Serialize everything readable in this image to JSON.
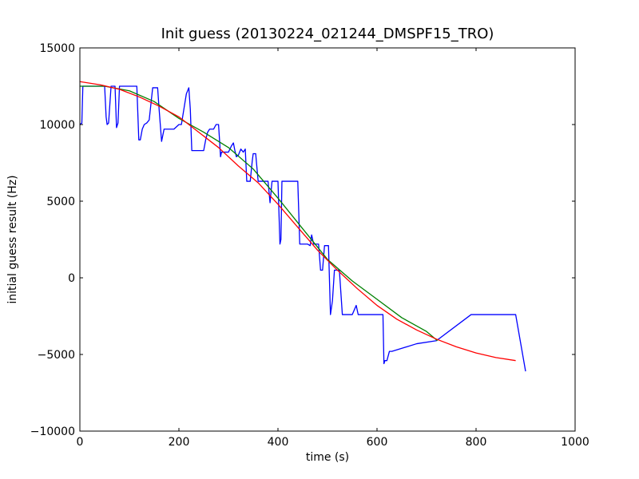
{
  "chart_data": {
    "type": "line",
    "title": "Init guess (20130224_021244_DMSPF15_TRO)",
    "xlabel": "time (s)",
    "ylabel": "initial guess result (Hz)",
    "xlim": [
      0,
      1000
    ],
    "ylim": [
      -10000,
      15000
    ],
    "xticks": [
      0,
      200,
      400,
      600,
      800,
      1000
    ],
    "yticks": [
      -10000,
      -5000,
      0,
      5000,
      10000,
      15000
    ],
    "grid": false,
    "legend": "none",
    "series": [
      {
        "color": "#0000ff",
        "x": [
          0,
          4,
          6,
          10,
          20,
          30,
          40,
          50,
          53,
          55,
          58,
          63,
          68,
          71,
          74,
          77,
          80,
          90,
          100,
          110,
          115,
          119,
          122,
          126,
          130,
          135,
          140,
          147,
          153,
          157,
          160,
          165,
          170,
          180,
          190,
          200,
          205,
          210,
          215,
          220,
          223,
          226,
          230,
          240,
          250,
          254,
          258,
          262,
          270,
          275,
          280,
          282,
          284,
          286,
          290,
          295,
          300,
          306,
          310,
          313,
          316,
          320,
          325,
          330,
          334,
          337,
          340,
          344,
          348,
          350,
          355,
          360,
          366,
          370,
          380,
          384,
          388,
          392,
          396,
          400,
          404,
          406,
          408,
          412,
          416,
          420,
          430,
          440,
          444,
          448,
          452,
          456,
          460,
          465,
          468,
          470,
          472,
          474,
          478,
          482,
          486,
          490,
          494,
          498,
          502,
          506,
          510,
          514,
          518,
          520,
          522,
          524,
          530,
          540,
          550,
          558,
          562,
          570,
          580,
          590,
          600,
          604,
          608,
          610,
          612,
          614,
          616,
          620,
          625,
          630,
          680,
          720,
          790,
          880,
          900
        ],
        "y": [
          10000,
          10100,
          12500,
          12500,
          12500,
          12500,
          12500,
          12500,
          10500,
          10000,
          10100,
          12500,
          12500,
          12500,
          9800,
          10100,
          12500,
          12500,
          12500,
          12500,
          12500,
          9000,
          9000,
          9700,
          10000,
          10100,
          10300,
          12400,
          12400,
          12400,
          11000,
          8900,
          9700,
          9700,
          9700,
          10000,
          10000,
          11000,
          12000,
          12400,
          11000,
          8300,
          8300,
          8300,
          8300,
          9000,
          9500,
          9700,
          9700,
          10000,
          10000,
          9000,
          7900,
          8200,
          8200,
          8200,
          8200,
          8600,
          8800,
          8300,
          7900,
          8000,
          8400,
          8200,
          8400,
          6300,
          6300,
          6300,
          7600,
          8100,
          8100,
          6300,
          6300,
          6300,
          6300,
          4900,
          6300,
          6300,
          6300,
          6300,
          2200,
          2500,
          6300,
          6300,
          6300,
          6300,
          6300,
          6300,
          2200,
          2200,
          2200,
          2200,
          2200,
          2100,
          2800,
          2500,
          2200,
          2200,
          2200,
          2200,
          500,
          500,
          2100,
          2100,
          2100,
          -2400,
          -1500,
          500,
          500,
          500,
          500,
          500,
          -2400,
          -2400,
          -2400,
          -1800,
          -2400,
          -2400,
          -2400,
          -2400,
          -2400,
          -2400,
          -2400,
          -2400,
          -2400,
          -5600,
          -5400,
          -5400,
          -4800,
          -4800,
          -4300,
          -4100,
          -2400,
          -2400,
          -6100
        ]
      },
      {
        "color": "#008000",
        "x": [
          0,
          50,
          100,
          150,
          200,
          250,
          300,
          350,
          400,
          450,
          500,
          550,
          600,
          650,
          700,
          722
        ],
        "y": [
          12500,
          12500,
          12200,
          11500,
          10400,
          9500,
          8500,
          7100,
          5200,
          3200,
          1200,
          -200,
          -1400,
          -2600,
          -3500,
          -4100
        ]
      },
      {
        "color": "#ff0000",
        "x": [
          0,
          40,
          80,
          120,
          160,
          200,
          240,
          280,
          320,
          360,
          400,
          440,
          480,
          520,
          560,
          600,
          640,
          680,
          720,
          760,
          800,
          840,
          880
        ],
        "y": [
          12800,
          12600,
          12300,
          11800,
          11200,
          10500,
          9500,
          8500,
          7300,
          6200,
          4800,
          3300,
          1800,
          500,
          -700,
          -1800,
          -2700,
          -3400,
          -4000,
          -4500,
          -4900,
          -5200,
          -5400
        ]
      }
    ]
  }
}
